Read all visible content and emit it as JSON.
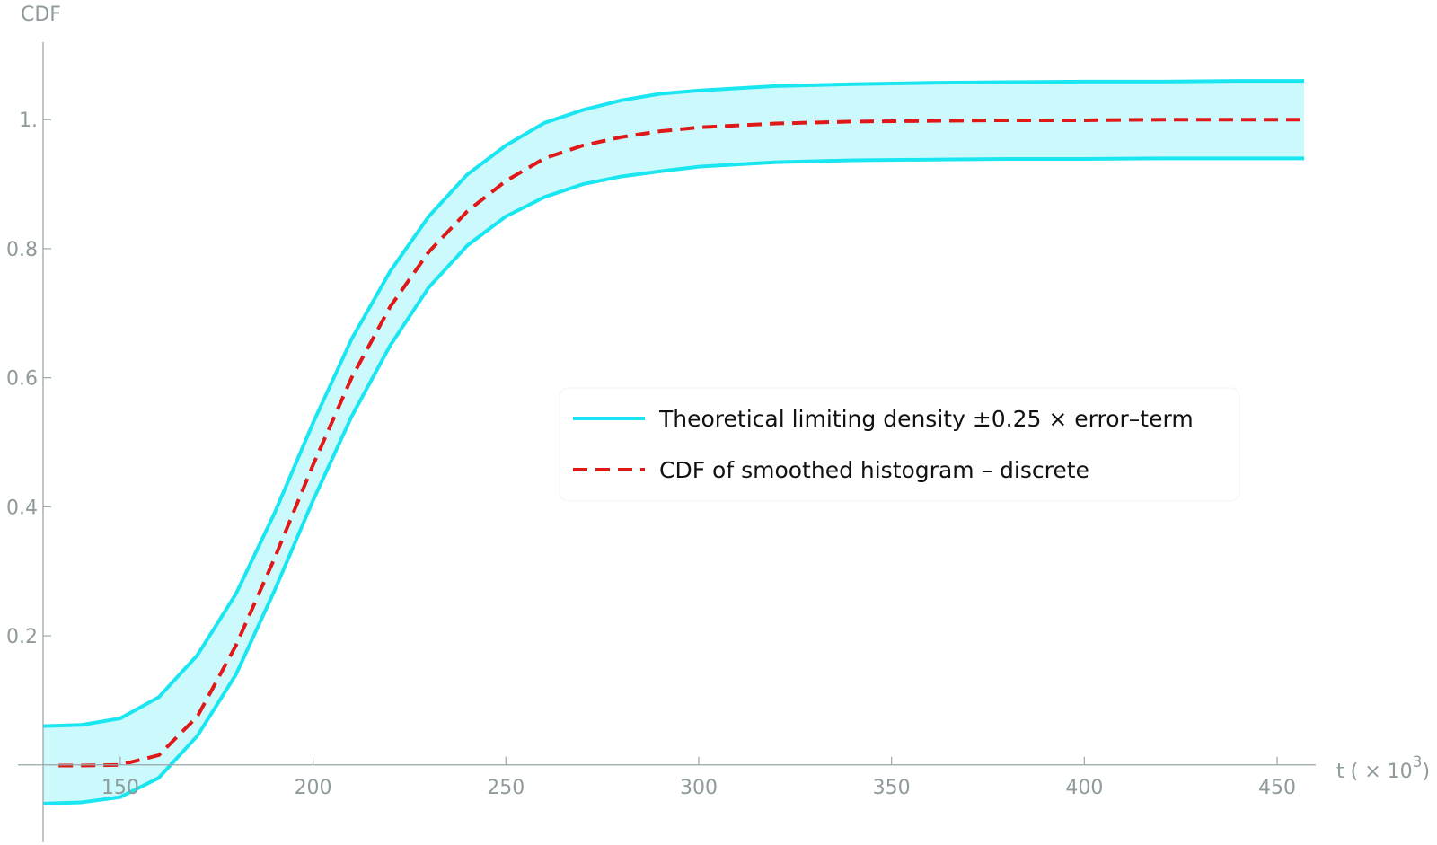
{
  "chart_data": {
    "type": "area",
    "title": "",
    "ylabel": "CDF",
    "xlabel_prefix": "t ( × 10",
    "xlabel_exp": "3",
    "xlabel_suffix": ")",
    "xlim": [
      130,
      460
    ],
    "ylim": [
      -0.12,
      1.12
    ],
    "xticks": [
      150,
      200,
      250,
      300,
      350,
      400,
      450
    ],
    "xtick_labels": [
      "150",
      "200",
      "250",
      "300",
      "350",
      "400",
      "450"
    ],
    "yticks": [
      0.2,
      0.4,
      0.6,
      0.8,
      1.0
    ],
    "ytick_labels": [
      "0.2",
      "0.4",
      "0.6",
      "0.8",
      "1."
    ],
    "grid": false,
    "legend_position": "center-right",
    "colors": {
      "band": "#19e6f0",
      "band_fill": "#ccfafc",
      "cdf": "#e01818",
      "axis": "#9aa6a8"
    },
    "series": [
      {
        "name": "Theoretical limiting density ±0.25 × error–term",
        "style": "band",
        "x": [
          130,
          140,
          150,
          160,
          170,
          180,
          190,
          200,
          210,
          220,
          230,
          240,
          250,
          260,
          270,
          280,
          290,
          300,
          320,
          340,
          360,
          380,
          400,
          420,
          440,
          457
        ],
        "upper": [
          0.06,
          0.062,
          0.072,
          0.105,
          0.17,
          0.265,
          0.39,
          0.53,
          0.66,
          0.765,
          0.85,
          0.915,
          0.96,
          0.995,
          1.015,
          1.03,
          1.04,
          1.045,
          1.052,
          1.055,
          1.057,
          1.058,
          1.059,
          1.059,
          1.06,
          1.06
        ],
        "lower": [
          -0.06,
          -0.058,
          -0.05,
          -0.02,
          0.045,
          0.14,
          0.27,
          0.41,
          0.54,
          0.65,
          0.74,
          0.805,
          0.85,
          0.88,
          0.9,
          0.912,
          0.92,
          0.927,
          0.934,
          0.937,
          0.938,
          0.939,
          0.939,
          0.94,
          0.94,
          0.94
        ]
      },
      {
        "name": "CDF of smoothed histogram – discrete",
        "style": "dashed",
        "x": [
          134,
          140,
          150,
          160,
          170,
          180,
          190,
          200,
          210,
          220,
          230,
          240,
          250,
          260,
          270,
          280,
          290,
          300,
          320,
          340,
          360,
          380,
          400,
          420,
          440,
          457
        ],
        "y": [
          -0.001,
          -0.001,
          0.0,
          0.015,
          0.075,
          0.185,
          0.32,
          0.465,
          0.6,
          0.71,
          0.795,
          0.858,
          0.905,
          0.94,
          0.96,
          0.973,
          0.982,
          0.988,
          0.994,
          0.997,
          0.998,
          0.999,
          0.999,
          1.0,
          1.0,
          1.0
        ]
      }
    ]
  }
}
